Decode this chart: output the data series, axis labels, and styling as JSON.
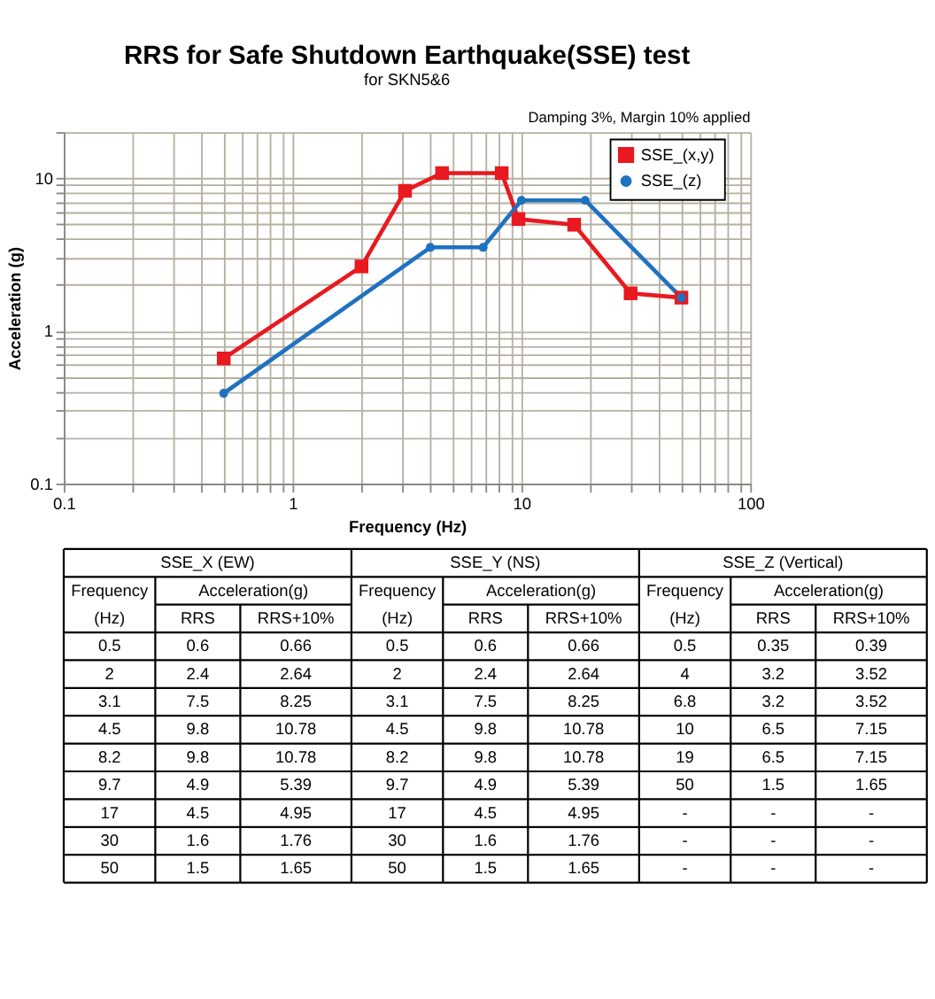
{
  "chart_data": [
    {
      "type": "line",
      "title": "RRS for Safe Shutdown Earthquake(SSE) test",
      "subtitle": "for SKN5&6",
      "xlabel": "Frequency (Hz)",
      "ylabel": "Acceleration (g)",
      "annotations": [
        "Damping 3%, Margin 10% applied"
      ],
      "series": [
        {
          "name": "SSE_(x,y)",
          "color": "#e8191f",
          "marker": "square",
          "x": [
            0.5,
            2,
            3.1,
            4.5,
            8.2,
            9.7,
            17,
            30,
            50
          ],
          "values": [
            0.66,
            2.64,
            8.25,
            10.78,
            10.78,
            5.39,
            4.95,
            1.76,
            1.65
          ]
        },
        {
          "name": "SSE_(z)",
          "color": "#1f72c0",
          "marker": "circle",
          "x": [
            0.5,
            4,
            6.8,
            10,
            19,
            50
          ],
          "values": [
            0.39,
            3.52,
            3.52,
            7.15,
            7.15,
            1.65
          ]
        }
      ],
      "log": "xy",
      "xlim": [
        0.1,
        100
      ],
      "ylim": [
        0.1,
        20
      ],
      "xticks": [
        0.1,
        {
          "value": 0.2,
          "label": null
        },
        {
          "value": 0.3,
          "label": null
        },
        {
          "value": 0.4,
          "label": null
        },
        {
          "value": 0.5,
          "label": null
        },
        {
          "value": 0.6,
          "label": null
        },
        {
          "value": 0.7,
          "label": null
        },
        {
          "value": 0.8,
          "label": null
        },
        {
          "value": 0.9,
          "label": null
        },
        1,
        {
          "value": 2,
          "label": null
        },
        {
          "value": 3,
          "label": null
        },
        {
          "value": 4,
          "label": null
        },
        {
          "value": 5,
          "label": null
        },
        {
          "value": 6,
          "label": null
        },
        {
          "value": 7,
          "label": null
        },
        {
          "value": 8,
          "label": null
        },
        {
          "value": 9,
          "label": null
        },
        10,
        {
          "value": 20,
          "label": null
        },
        {
          "value": 30,
          "label": null
        },
        {
          "value": 40,
          "label": null
        },
        {
          "value": 50,
          "label": null
        },
        {
          "value": 60,
          "label": null
        },
        {
          "value": 70,
          "label": null
        },
        {
          "value": 80,
          "label": null
        },
        {
          "value": 90,
          "label": null
        },
        100
      ],
      "yticks": [
        0.1,
        {
          "value": 0.2,
          "label": null
        },
        {
          "value": 0.3,
          "label": null
        },
        {
          "value": 0.4,
          "label": null
        },
        {
          "value": 0.5,
          "label": null
        },
        {
          "value": 0.6,
          "label": null
        },
        {
          "value": 0.7,
          "label": null
        },
        {
          "value": 0.8,
          "label": null
        },
        {
          "value": 0.9,
          "label": null
        },
        1,
        {
          "value": 2,
          "label": null
        },
        {
          "value": 3,
          "label": null
        },
        {
          "value": 4,
          "label": null
        },
        {
          "value": 5,
          "label": null
        },
        {
          "value": 6,
          "label": null
        },
        {
          "value": 7,
          "label": null
        },
        {
          "value": 8,
          "label": null
        },
        {
          "value": 9,
          "label": null
        },
        10,
        {
          "value": 20,
          "label": null
        }
      ],
      "grid": true,
      "legend": "top right",
      "line_style": "solid"
    },
    {
      "type": "other",
      "annotations": [
        "SSE_X (EW)",
        "SSE_Y (NS)",
        "SSE_Z (Vertical)",
        "Frequency",
        "Acceleration(g)",
        "Frequency",
        "Acceleration(g)",
        "Frequency",
        "Acceleration(g)",
        "(Hz)",
        "RRS",
        "RRS+10%",
        "(Hz)",
        "RRS",
        "RRS+10%",
        "(Hz)",
        "RRS",
        "RRS+10%",
        "0.5",
        "0.6",
        "0.66",
        "0.5",
        "0.6",
        "0.66",
        "0.5",
        "0.35",
        "0.39",
        "2",
        "2.4",
        "2.64",
        "2",
        "2.4",
        "2.64",
        "4",
        "3.2",
        "3.52",
        "3.1",
        "7.5",
        "8.25",
        "3.1",
        "7.5",
        "8.25",
        "6.8",
        "3.2",
        "3.52",
        "4.5",
        "9.8",
        "10.78",
        "4.5",
        "9.8",
        "10.78",
        "10",
        "6.5",
        "7.15",
        "8.2",
        "9.8",
        "10.78",
        "8.2",
        "9.8",
        "10.78",
        "19",
        "6.5",
        "7.15",
        "9.7",
        "4.9",
        "5.39",
        "9.7",
        "4.9",
        "5.39",
        "50",
        "1.5",
        "1.65",
        "17",
        "4.5",
        "4.95",
        "17",
        "4.5",
        "4.95",
        "-",
        "-",
        "-",
        "30",
        "1.6",
        "1.76",
        "30",
        "1.6",
        "1.76",
        "-",
        "-",
        "-",
        "50",
        "1.5",
        "1.65",
        "50",
        "1.5",
        "1.65",
        "-",
        "-",
        "-"
      ]
    }
  ]
}
